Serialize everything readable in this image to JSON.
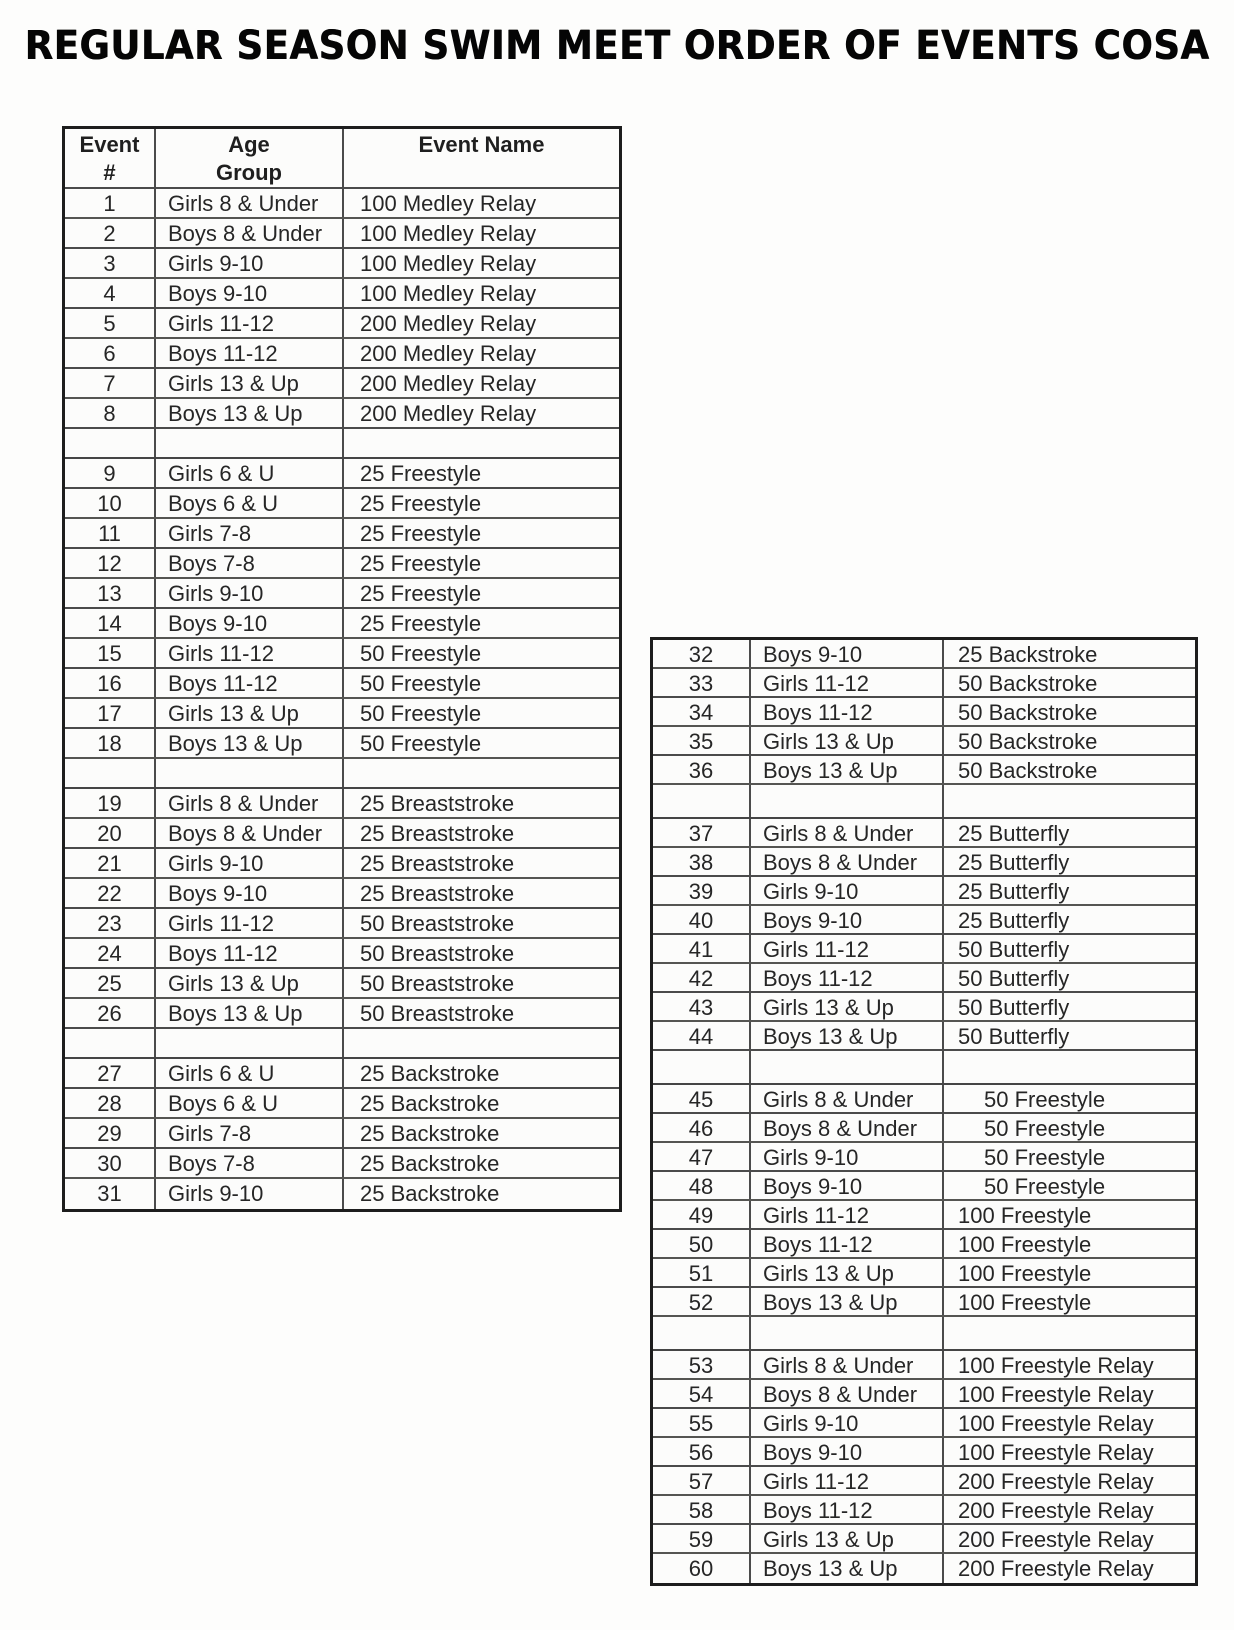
{
  "title": "REGULAR SEASON SWIM MEET ORDER OF EVENTS COSA",
  "left_table": {
    "header": {
      "event_num_line1": "Event",
      "event_num_line2": "#",
      "age_group_line1": "Age",
      "age_group_line2": "Group",
      "event_name": "Event Name"
    },
    "rows": [
      {
        "num": "1",
        "age": "Girls 8 & Under",
        "event": "100 Medley Relay"
      },
      {
        "num": "2",
        "age": "Boys 8 & Under",
        "event": "100 Medley Relay"
      },
      {
        "num": "3",
        "age": "Girls 9-10",
        "event": "100 Medley Relay"
      },
      {
        "num": "4",
        "age": "Boys 9-10",
        "event": "100 Medley Relay"
      },
      {
        "num": "5",
        "age": "Girls 11-12",
        "event": "200 Medley Relay"
      },
      {
        "num": "6",
        "age": "Boys 11-12",
        "event": "200 Medley Relay"
      },
      {
        "num": "7",
        "age": "Girls 13 & Up",
        "event": "200 Medley Relay"
      },
      {
        "num": "8",
        "age": "Boys 13 & Up",
        "event": "200 Medley Relay"
      },
      {
        "blank": true
      },
      {
        "num": "9",
        "age": "Girls 6 & U",
        "event": "25 Freestyle"
      },
      {
        "num": "10",
        "age": "Boys 6 & U",
        "event": "25 Freestyle"
      },
      {
        "num": "11",
        "age": "Girls 7-8",
        "event": "25 Freestyle"
      },
      {
        "num": "12",
        "age": "Boys 7-8",
        "event": "25 Freestyle"
      },
      {
        "num": "13",
        "age": "Girls 9-10",
        "event": "25 Freestyle"
      },
      {
        "num": "14",
        "age": "Boys 9-10",
        "event": "25 Freestyle"
      },
      {
        "num": "15",
        "age": "Girls 11-12",
        "event": "50 Freestyle"
      },
      {
        "num": "16",
        "age": "Boys 11-12",
        "event": "50 Freestyle"
      },
      {
        "num": "17",
        "age": "Girls 13 & Up",
        "event": "50 Freestyle"
      },
      {
        "num": "18",
        "age": "Boys 13 & Up",
        "event": "50 Freestyle"
      },
      {
        "blank": true
      },
      {
        "num": "19",
        "age": "Girls 8 & Under",
        "event": "25 Breaststroke"
      },
      {
        "num": "20",
        "age": "Boys 8 & Under",
        "event": "25 Breaststroke"
      },
      {
        "num": "21",
        "age": "Girls 9-10",
        "event": "25 Breaststroke"
      },
      {
        "num": "22",
        "age": "Boys 9-10",
        "event": "25 Breaststroke"
      },
      {
        "num": "23",
        "age": "Girls 11-12",
        "event": "50 Breaststroke"
      },
      {
        "num": "24",
        "age": "Boys 11-12",
        "event": "50 Breaststroke"
      },
      {
        "num": "25",
        "age": "Girls 13 & Up",
        "event": "50 Breaststroke"
      },
      {
        "num": "26",
        "age": "Boys 13 & Up",
        "event": "50 Breaststroke"
      },
      {
        "blank": true
      },
      {
        "num": "27",
        "age": "Girls 6 & U",
        "event": "25 Backstroke"
      },
      {
        "num": "28",
        "age": "Boys 6 & U",
        "event": "25 Backstroke"
      },
      {
        "num": "29",
        "age": "Girls 7-8",
        "event": "25 Backstroke"
      },
      {
        "num": "30",
        "age": "Boys 7-8",
        "event": "25 Backstroke"
      },
      {
        "num": "31",
        "age": "Girls 9-10",
        "event": "25 Backstroke"
      }
    ]
  },
  "right_table": {
    "rows": [
      {
        "num": "32",
        "age": "Boys 9-10",
        "event": "25 Backstroke"
      },
      {
        "num": "33",
        "age": "Girls 11-12",
        "event": "50 Backstroke"
      },
      {
        "num": "34",
        "age": "Boys 11-12",
        "event": "50 Backstroke"
      },
      {
        "num": "35",
        "age": "Girls 13 & Up",
        "event": "50 Backstroke"
      },
      {
        "num": "36",
        "age": "Boys 13 & Up",
        "event": "50 Backstroke"
      },
      {
        "blank": true
      },
      {
        "num": "37",
        "age": "Girls 8 & Under",
        "event": "25 Butterfly"
      },
      {
        "num": "38",
        "age": "Boys 8 & Under",
        "event": "25 Butterfly"
      },
      {
        "num": "39",
        "age": "Girls 9-10",
        "event": "25 Butterfly"
      },
      {
        "num": "40",
        "age": "Boys 9-10",
        "event": "25 Butterfly"
      },
      {
        "num": "41",
        "age": "Girls 11-12",
        "event": "50 Butterfly"
      },
      {
        "num": "42",
        "age": "Boys 11-12",
        "event": "50 Butterfly"
      },
      {
        "num": "43",
        "age": "Girls 13 & Up",
        "event": "50 Butterfly"
      },
      {
        "num": "44",
        "age": "Boys 13 & Up",
        "event": "50 Butterfly"
      },
      {
        "blank": true
      },
      {
        "num": "45",
        "age": "Girls 8 & Under",
        "event": "50 Freestyle",
        "indent": true
      },
      {
        "num": "46",
        "age": "Boys 8 & Under",
        "event": "50 Freestyle",
        "indent": true
      },
      {
        "num": "47",
        "age": "Girls 9-10",
        "event": "50 Freestyle",
        "indent": true
      },
      {
        "num": "48",
        "age": "Boys 9-10",
        "event": "50 Freestyle",
        "indent": true
      },
      {
        "num": "49",
        "age": "Girls 11-12",
        "event": "100 Freestyle"
      },
      {
        "num": "50",
        "age": "Boys 11-12",
        "event": "100 Freestyle"
      },
      {
        "num": "51",
        "age": "Girls 13 & Up",
        "event": "100 Freestyle"
      },
      {
        "num": "52",
        "age": "Boys 13 & Up",
        "event": "100 Freestyle"
      },
      {
        "blank": true
      },
      {
        "num": "53",
        "age": "Girls 8 & Under",
        "event": "100 Freestyle Relay"
      },
      {
        "num": "54",
        "age": "Boys 8 & Under",
        "event": "100 Freestyle Relay"
      },
      {
        "num": "55",
        "age": "Girls 9-10",
        "event": "100 Freestyle Relay"
      },
      {
        "num": "56",
        "age": "Boys 9-10",
        "event": "100 Freestyle Relay"
      },
      {
        "num": "57",
        "age": "Girls 11-12",
        "event": "200 Freestyle Relay"
      },
      {
        "num": "58",
        "age": "Boys 11-12",
        "event": "200 Freestyle Relay"
      },
      {
        "num": "59",
        "age": "Girls 13 & Up",
        "event": "200 Freestyle Relay"
      },
      {
        "num": "60",
        "age": "Boys 13 & Up",
        "event": "200 Freestyle Relay"
      }
    ]
  }
}
